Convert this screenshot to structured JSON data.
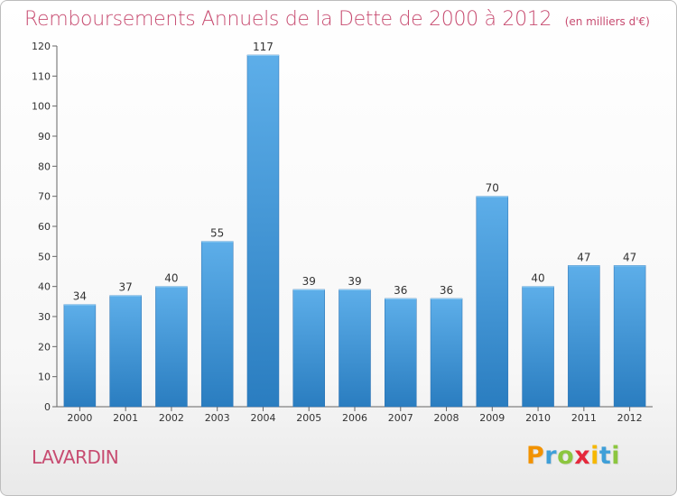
{
  "chart_data": {
    "type": "bar",
    "title": "Remboursements Annuels de la Dette de 2000 à 2012",
    "subtitle": "(en milliers d'€)",
    "categories": [
      "2000",
      "2001",
      "2002",
      "2003",
      "2004",
      "2005",
      "2006",
      "2007",
      "2008",
      "2009",
      "2010",
      "2011",
      "2012"
    ],
    "values": [
      34,
      37,
      40,
      55,
      117,
      39,
      39,
      36,
      36,
      70,
      40,
      47,
      47
    ],
    "ylim": [
      0,
      120
    ],
    "yticks": [
      0,
      10,
      20,
      30,
      40,
      50,
      60,
      70,
      80,
      90,
      100,
      110,
      120
    ],
    "grid": false,
    "bar_color": "#3f93d6"
  },
  "footer": {
    "commune": "LAVARDIN",
    "brand": [
      "P",
      "r",
      "o",
      "x",
      "i",
      "t",
      "i"
    ],
    "brand_colors": [
      "#f29200",
      "#3f9fd8",
      "#8cc63f",
      "#e5283b",
      "#f6b800",
      "#3f9fd8",
      "#8cc63f"
    ]
  }
}
